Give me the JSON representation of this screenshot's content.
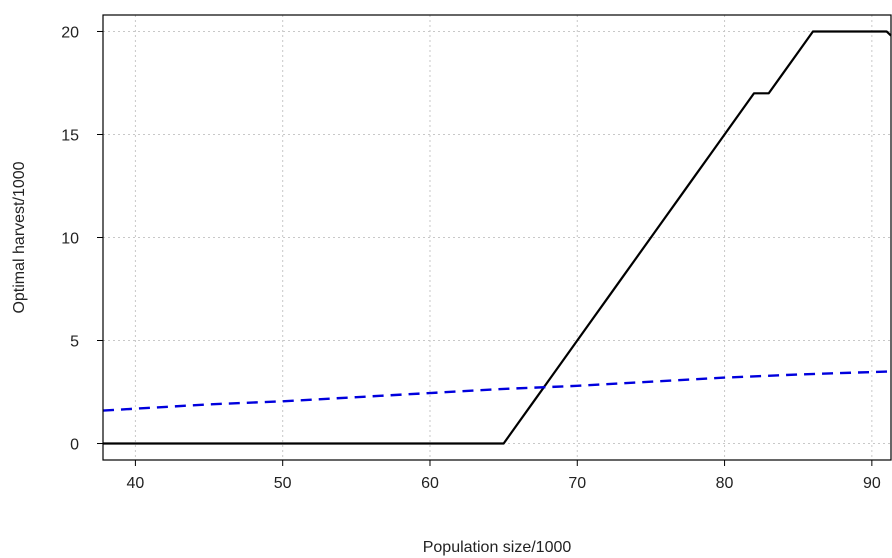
{
  "chart_data": {
    "type": "line",
    "title": "",
    "xlabel": "Population size/1000",
    "ylabel": "Optimal harvest/1000",
    "xlim": [
      37.8,
      91.3
    ],
    "ylim": [
      -0.8,
      20.8
    ],
    "xticks": [
      40,
      50,
      60,
      70,
      80,
      90
    ],
    "yticks": [
      0,
      5,
      10,
      15,
      20
    ],
    "xtick_labels": [
      "40",
      "50",
      "60",
      "70",
      "80",
      "90"
    ],
    "ytick_labels": [
      "0",
      "5",
      "10",
      "15",
      "20"
    ],
    "grid": true,
    "series": [
      {
        "style": "solid",
        "color": "#000000",
        "x": [
          37.8,
          65,
          66,
          67,
          68,
          69,
          70,
          71,
          72,
          73,
          74,
          75,
          76,
          77,
          78,
          79,
          80,
          81,
          82,
          83,
          84,
          85,
          86,
          87,
          88,
          89,
          90,
          91,
          91.3
        ],
        "y": [
          0,
          0,
          1,
          2,
          3,
          4,
          5,
          6,
          7,
          8,
          9,
          10,
          11,
          12,
          13,
          14,
          15,
          16,
          17,
          17,
          18,
          19,
          20,
          20,
          20,
          20,
          20,
          20,
          19.8
        ]
      },
      {
        "style": "dashed",
        "color": "#0000dd",
        "x": [
          37.8,
          45,
          50,
          55,
          60,
          65,
          70,
          75,
          80,
          85,
          91.3
        ],
        "y": [
          1.6,
          1.9,
          2.05,
          2.25,
          2.45,
          2.65,
          2.8,
          3.0,
          3.2,
          3.35,
          3.5
        ]
      }
    ]
  }
}
